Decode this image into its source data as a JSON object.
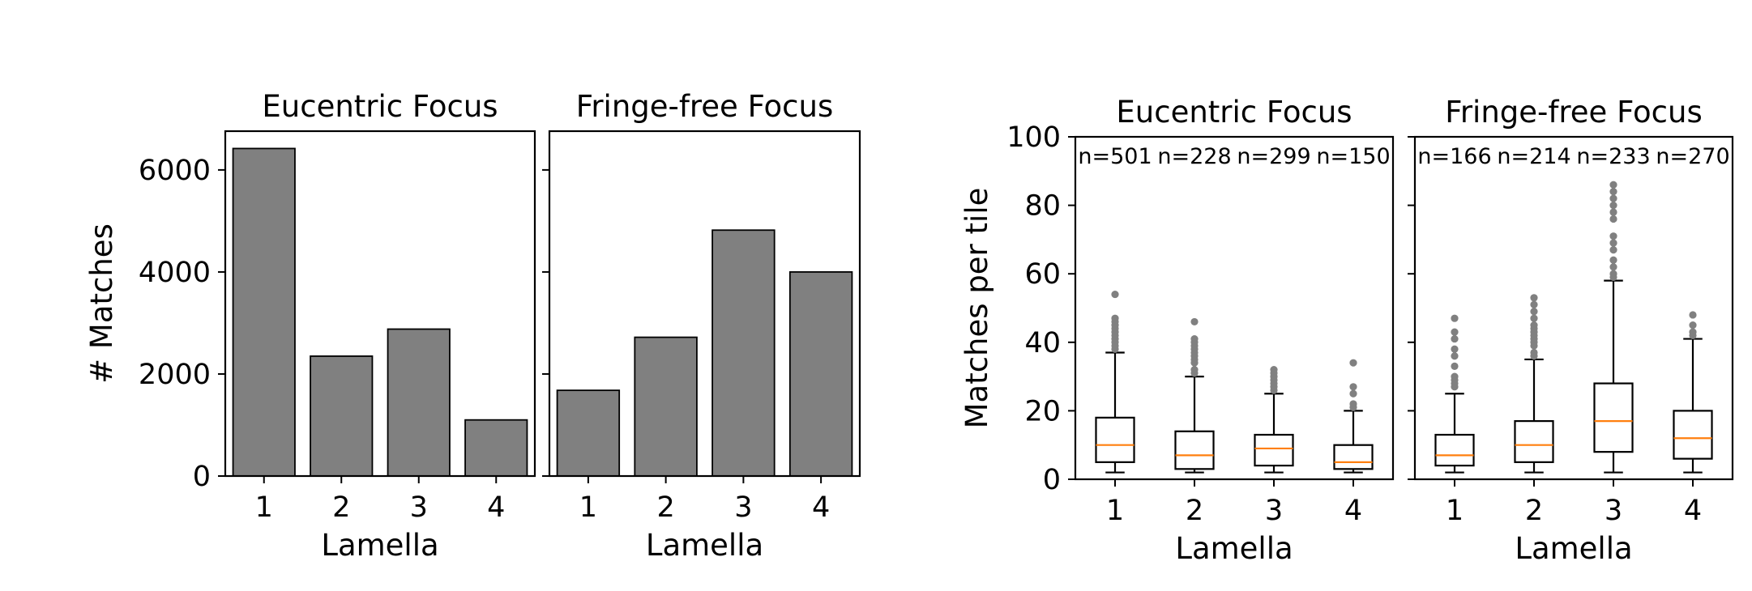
{
  "chart_data": [
    {
      "type": "bar",
      "title": "Eucentric Focus",
      "xlabel": "Lamella",
      "ylabel": "# Matches",
      "categories": [
        "1",
        "2",
        "3",
        "4"
      ],
      "values": [
        6420,
        2350,
        2880,
        1100
      ],
      "ylim": [
        0,
        6760
      ],
      "yticks": [
        0,
        2000,
        4000,
        6000
      ],
      "color": "#808080"
    },
    {
      "type": "bar",
      "title": "Fringe-free Focus",
      "xlabel": "Lamella",
      "ylabel": "",
      "categories": [
        "1",
        "2",
        "3",
        "4"
      ],
      "values": [
        1680,
        2720,
        4820,
        4000
      ],
      "ylim": [
        0,
        6760
      ],
      "yticks": [
        0,
        2000,
        4000,
        6000
      ],
      "sharey": true,
      "color": "#808080"
    },
    {
      "type": "box",
      "title": "Eucentric Focus",
      "xlabel": "Lamella",
      "ylabel": "Matches per tile",
      "categories": [
        "1",
        "2",
        "3",
        "4"
      ],
      "ylim": [
        0,
        100
      ],
      "yticks": [
        0,
        20,
        40,
        60,
        80,
        100
      ],
      "n_labels": [
        "n=501",
        "n=228",
        "n=299",
        "n=150"
      ],
      "boxes": [
        {
          "whislo": 2,
          "q1": 5,
          "med": 10,
          "q3": 18,
          "whishi": 37,
          "fliers": [
            38,
            39,
            40,
            41,
            42,
            43,
            44,
            45,
            46,
            47,
            54
          ]
        },
        {
          "whislo": 2,
          "q1": 3,
          "med": 7,
          "q3": 14,
          "whishi": 30,
          "fliers": [
            31,
            32,
            34,
            35,
            36,
            37,
            38,
            39,
            40,
            41,
            46
          ]
        },
        {
          "whislo": 2,
          "q1": 4,
          "med": 9,
          "q3": 13,
          "whishi": 25,
          "fliers": [
            26,
            27,
            28,
            29,
            30,
            31,
            32
          ]
        },
        {
          "whislo": 2,
          "q1": 3,
          "med": 5,
          "q3": 10,
          "whishi": 20,
          "fliers": [
            21,
            22,
            25,
            27,
            34
          ]
        }
      ],
      "median_color": "#ff7f0e",
      "flier_color": "#808080"
    },
    {
      "type": "box",
      "title": "Fringe-free Focus",
      "xlabel": "Lamella",
      "ylabel": "",
      "categories": [
        "1",
        "2",
        "3",
        "4"
      ],
      "ylim": [
        0,
        100
      ],
      "yticks": [
        0,
        20,
        40,
        60,
        80,
        100
      ],
      "sharey": true,
      "n_labels": [
        "n=166",
        "n=214",
        "n=233",
        "n=270"
      ],
      "boxes": [
        {
          "whislo": 2,
          "q1": 4,
          "med": 7,
          "q3": 13,
          "whishi": 25,
          "fliers": [
            27,
            28,
            29,
            30,
            33,
            36,
            38,
            41,
            43,
            47
          ]
        },
        {
          "whislo": 2,
          "q1": 5,
          "med": 10,
          "q3": 17,
          "whishi": 35,
          "fliers": [
            36,
            37,
            39,
            40,
            41,
            42,
            43,
            44,
            45,
            47,
            49,
            51,
            53
          ]
        },
        {
          "whislo": 2,
          "q1": 8,
          "med": 17,
          "q3": 28,
          "whishi": 58,
          "fliers": [
            59,
            60,
            62,
            64,
            67,
            69,
            71,
            76,
            78,
            80,
            82,
            84,
            86
          ]
        },
        {
          "whislo": 2,
          "q1": 6,
          "med": 12,
          "q3": 20,
          "whishi": 41,
          "fliers": [
            42,
            43,
            45,
            48
          ]
        }
      ],
      "median_color": "#ff7f0e",
      "flier_color": "#808080"
    }
  ]
}
